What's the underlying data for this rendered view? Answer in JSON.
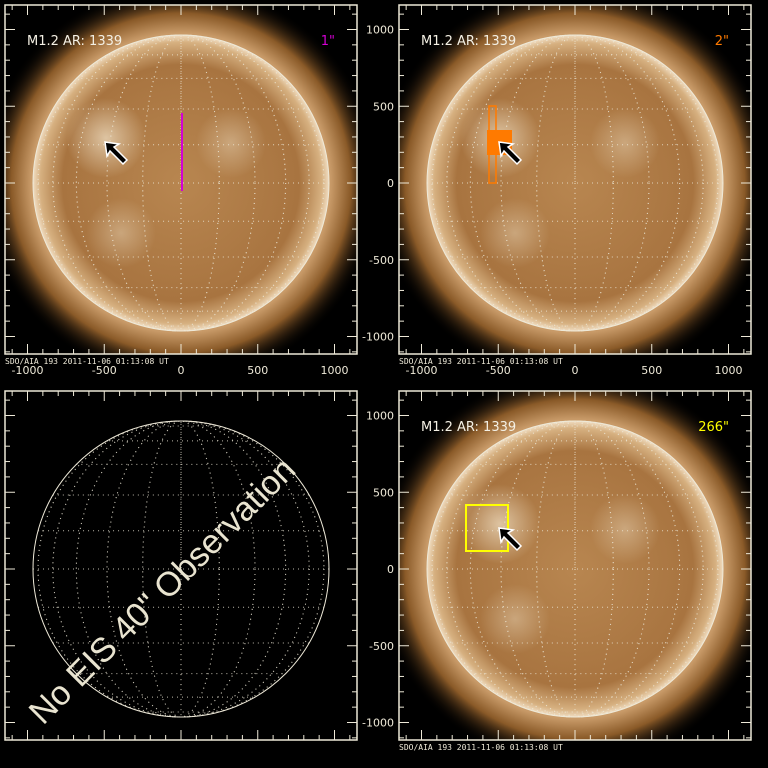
{
  "footer": "SDO/AIA 193  2011-11-06 01:13:08 UT",
  "x_ticks": [
    "-1000",
    "-500",
    "0",
    "500",
    "1000"
  ],
  "y_ticks": [
    "1000",
    "500",
    "0",
    "-500",
    "-1000"
  ],
  "panels": [
    {
      "id": "top-left",
      "title": "M1.2 AR: 1339",
      "slit": "1\"",
      "slit_color": "#d400d4",
      "image": true,
      "annotation": "slit-line",
      "footer": true,
      "x_axis": true
    },
    {
      "id": "top-right",
      "title": "M1.2 AR: 1339",
      "slit": "2\"",
      "slit_color": "#ff7a00",
      "image": true,
      "annotation": "raster-box",
      "footer": true,
      "x_axis": true
    },
    {
      "id": "bottom-left",
      "title": "",
      "slit": "",
      "image": false,
      "message": "No EIS 40\" Observation"
    },
    {
      "id": "bottom-right",
      "title": "M1.2 AR: 1339",
      "slit": "266\"",
      "slit_color": "#ffff00",
      "image": true,
      "annotation": "fov-box",
      "footer": true,
      "x_axis": false
    }
  ],
  "colors": {
    "frame": "#eee9d8",
    "sun_core": "#e8c89a",
    "sun_edge": "#7a4a1c",
    "corona": "#5a3210"
  }
}
